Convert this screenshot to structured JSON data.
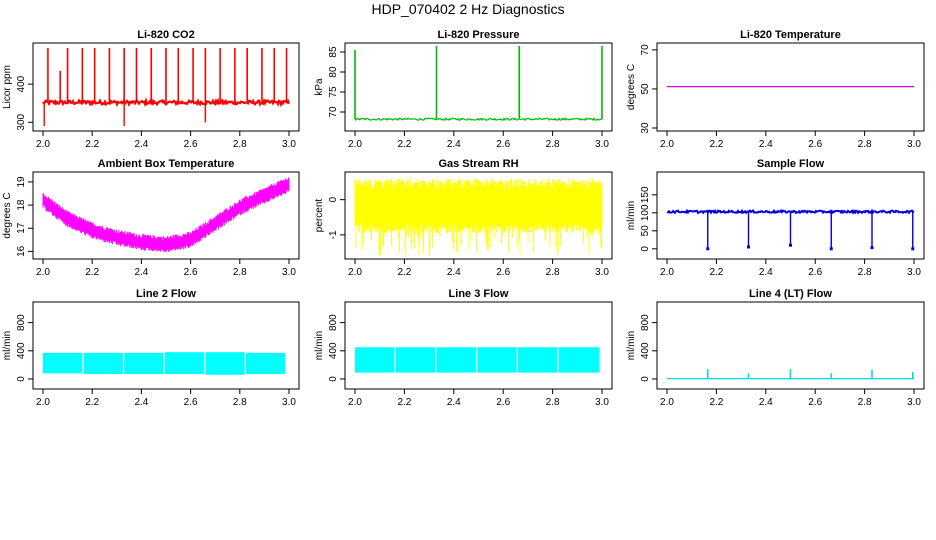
{
  "title": "HDP_070402  2 Hz Diagnostics",
  "chart_data": [
    {
      "type": "line",
      "title": "Li-820 CO2",
      "ylabel": "Licor ppm",
      "xlim": [
        2.0,
        3.0
      ],
      "ylim": [
        285,
        500
      ],
      "xticks": [
        "2.0",
        "2.2",
        "2.4",
        "2.6",
        "2.8",
        "3.0"
      ],
      "yticks": [
        300,
        400
      ],
      "color": "#ff0000",
      "pattern": "co2",
      "baseline": 352,
      "noise": 5,
      "spikes": [
        [
          2.02,
          495
        ],
        [
          2.07,
          435
        ],
        [
          2.1,
          495
        ],
        [
          2.16,
          495
        ],
        [
          2.21,
          495
        ],
        [
          2.27,
          495
        ],
        [
          2.33,
          495
        ],
        [
          2.38,
          495
        ],
        [
          2.44,
          495
        ],
        [
          2.5,
          495
        ],
        [
          2.55,
          495
        ],
        [
          2.61,
          495
        ],
        [
          2.66,
          495
        ],
        [
          2.72,
          495
        ],
        [
          2.78,
          495
        ],
        [
          2.83,
          495
        ],
        [
          2.89,
          495
        ],
        [
          2.94,
          495
        ],
        [
          2.99,
          495
        ]
      ],
      "dips": [
        [
          2.005,
          290
        ],
        [
          2.33,
          290
        ],
        [
          2.66,
          300
        ]
      ]
    },
    {
      "type": "line",
      "title": "Li-820 Pressure",
      "ylabel": "kPa",
      "xlim": [
        2.0,
        3.0
      ],
      "ylim": [
        66,
        86.5
      ],
      "xticks": [
        "2.0",
        "2.2",
        "2.4",
        "2.6",
        "2.8",
        "3.0"
      ],
      "yticks": [
        70,
        75,
        80,
        85
      ],
      "color": "#00bb00",
      "pattern": "pressure",
      "baseline": 68.2,
      "noise": 0.25,
      "spikes": [
        [
          2.0,
          85.5
        ],
        [
          2.33,
          86.5
        ],
        [
          2.665,
          86.5
        ],
        [
          3.0,
          86.5
        ]
      ],
      "dips": []
    },
    {
      "type": "line",
      "title": "Li-820 Temperature",
      "ylabel": "degrees C",
      "xlim": [
        2.0,
        3.0
      ],
      "ylim": [
        30,
        72
      ],
      "xticks": [
        "2.0",
        "2.2",
        "2.4",
        "2.6",
        "2.8",
        "3.0"
      ],
      "yticks": [
        30,
        50,
        70
      ],
      "color": "#dd00dd",
      "pattern": "flat",
      "baseline": 51.2,
      "noise": 0,
      "spikes": [],
      "dips": []
    },
    {
      "type": "line",
      "title": "Ambient Box Temperature",
      "ylabel": "degrees C",
      "xlim": [
        2.0,
        3.0
      ],
      "ylim": [
        15.8,
        19.3
      ],
      "xticks": [
        "2.0",
        "2.2",
        "2.4",
        "2.6",
        "2.8",
        "3.0"
      ],
      "yticks": [
        16,
        17,
        18,
        19
      ],
      "color": "#ff00ff",
      "pattern": "band",
      "curve": [
        [
          2.0,
          18.2
        ],
        [
          2.1,
          17.4
        ],
        [
          2.2,
          16.9
        ],
        [
          2.3,
          16.6
        ],
        [
          2.4,
          16.4
        ],
        [
          2.5,
          16.3
        ],
        [
          2.6,
          16.5
        ],
        [
          2.7,
          17.2
        ],
        [
          2.8,
          17.9
        ],
        [
          2.9,
          18.4
        ],
        [
          3.0,
          18.9
        ]
      ],
      "noise": 0.3,
      "spikes": [],
      "dips": []
    },
    {
      "type": "line",
      "title": "Gas Stream RH",
      "ylabel": "percent",
      "xlim": [
        2.0,
        3.0
      ],
      "ylim": [
        -1.6,
        0.7
      ],
      "xticks": [
        "2.0",
        "2.2",
        "2.4",
        "2.6",
        "2.8",
        "3.0"
      ],
      "yticks": [
        -1,
        0
      ],
      "color": "#ffff00",
      "pattern": "rh",
      "baseline": -0.3,
      "noise": 0.45,
      "spikes": [],
      "dips": []
    },
    {
      "type": "line",
      "title": "Sample Flow",
      "ylabel": "ml/min",
      "xlim": [
        2.0,
        3.0
      ],
      "ylim": [
        -20,
        205
      ],
      "xticks": [
        "2.0",
        "2.2",
        "2.4",
        "2.6",
        "2.8",
        "3.0"
      ],
      "yticks": [
        0,
        50,
        100,
        150
      ],
      "color": "#0000dd",
      "pattern": "sample",
      "baseline": 103,
      "noise": 3,
      "spikes": [],
      "dips": [
        [
          2.165,
          0
        ],
        [
          2.33,
          5
        ],
        [
          2.5,
          10
        ],
        [
          2.665,
          0
        ],
        [
          2.83,
          3
        ],
        [
          2.995,
          0
        ]
      ]
    },
    {
      "type": "line",
      "title": "Line 2 Flow",
      "ylabel": "ml/min",
      "xlim": [
        2.0,
        3.0
      ],
      "ylim": [
        -100,
        1050
      ],
      "xticks": [
        "2.0",
        "2.2",
        "2.4",
        "2.6",
        "2.8",
        "3.0"
      ],
      "yticks": [
        0,
        400,
        800
      ],
      "color": "#00ffff",
      "pattern": "block",
      "blocks": [
        [
          2.0,
          2.16,
          80,
          370
        ],
        [
          2.165,
          2.325,
          70,
          370
        ],
        [
          2.33,
          2.49,
          70,
          370
        ],
        [
          2.495,
          2.655,
          70,
          380
        ],
        [
          2.66,
          2.82,
          60,
          380
        ],
        [
          2.825,
          2.985,
          70,
          370
        ]
      ],
      "noise": 0,
      "spikes": [],
      "dips": []
    },
    {
      "type": "line",
      "title": "Line 3 Flow",
      "ylabel": "ml/min",
      "xlim": [
        2.0,
        3.0
      ],
      "ylim": [
        -100,
        1050
      ],
      "xticks": [
        "2.0",
        "2.2",
        "2.4",
        "2.6",
        "2.8",
        "3.0"
      ],
      "yticks": [
        0,
        400,
        800
      ],
      "color": "#00ffff",
      "pattern": "block",
      "blocks": [
        [
          2.0,
          2.16,
          90,
          450
        ],
        [
          2.165,
          2.325,
          90,
          450
        ],
        [
          2.33,
          2.49,
          90,
          450
        ],
        [
          2.495,
          2.655,
          90,
          450
        ],
        [
          2.66,
          2.82,
          90,
          450
        ],
        [
          2.825,
          2.99,
          90,
          450
        ]
      ],
      "noise": 0,
      "spikes": [],
      "dips": []
    },
    {
      "type": "line",
      "title": "Line 4 (LT) Flow",
      "ylabel": "ml/min",
      "xlim": [
        2.0,
        3.0
      ],
      "ylim": [
        -100,
        1050
      ],
      "xticks": [
        "2.0",
        "2.2",
        "2.4",
        "2.6",
        "2.8",
        "3.0"
      ],
      "yticks": [
        0,
        400,
        800
      ],
      "color": "#00dddd",
      "pattern": "line4",
      "baseline": 5,
      "noise": 0,
      "spikes": [
        [
          2.165,
          140
        ],
        [
          2.33,
          80
        ],
        [
          2.5,
          140
        ],
        [
          2.665,
          80
        ],
        [
          2.83,
          130
        ],
        [
          2.995,
          100
        ]
      ],
      "dips": []
    }
  ]
}
